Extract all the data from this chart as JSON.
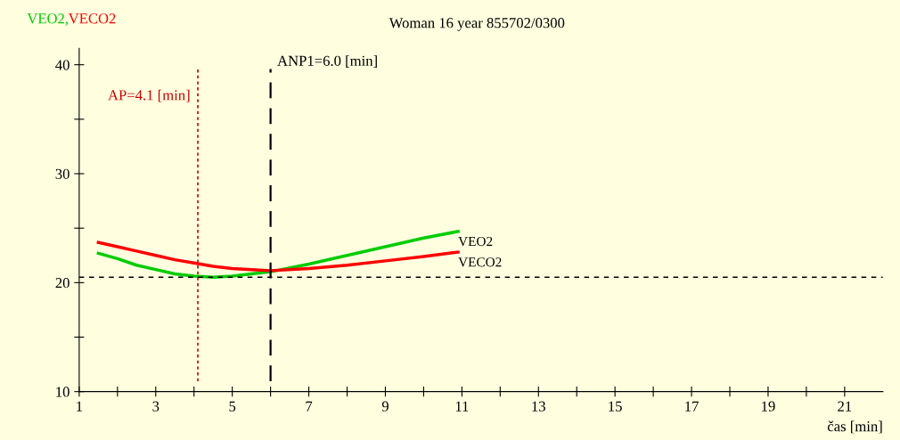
{
  "chart_data": {
    "type": "line",
    "title": "Woman 16 year 855702/0300",
    "ylabel": "VEO2,VECO2",
    "xlabel": "čas [min]",
    "series": [
      {
        "name": "VEO2",
        "color": "#00cc00",
        "x": [
          1.5,
          2,
          2.5,
          3,
          3.5,
          4,
          4.5,
          5,
          5.5,
          6,
          7,
          8,
          9,
          10,
          10.9
        ],
        "values": [
          22.7,
          22.2,
          21.6,
          21.2,
          20.8,
          20.6,
          20.5,
          20.6,
          20.8,
          21.0,
          21.7,
          22.5,
          23.3,
          24.1,
          24.7
        ]
      },
      {
        "name": "VECO2",
        "color": "#ff0000",
        "x": [
          1.5,
          2,
          2.5,
          3,
          3.5,
          4,
          4.5,
          5,
          5.5,
          6,
          7,
          8,
          9,
          10,
          10.9
        ],
        "values": [
          23.7,
          23.3,
          22.9,
          22.5,
          22.1,
          21.8,
          21.5,
          21.3,
          21.2,
          21.1,
          21.3,
          21.6,
          22.0,
          22.4,
          22.8
        ]
      }
    ],
    "ref_lines": [
      {
        "axis": "x",
        "value": 6.0,
        "label": "ANP1=6.0 [min]",
        "color": "#000000",
        "line_style": "dashed"
      },
      {
        "axis": "x",
        "value": 4.1,
        "label": "AP=4.1 [min]",
        "color": "#cc0000",
        "line_style": "dotted"
      },
      {
        "axis": "y",
        "value": 20.5,
        "color": "#000000",
        "line_style": "dashed"
      }
    ],
    "xlim": [
      1,
      22
    ],
    "ylim": [
      10,
      41.5
    ],
    "xticks": [
      1,
      {
        "value": 2,
        "label": null
      },
      3,
      {
        "value": 4,
        "label": null
      },
      5,
      {
        "value": 6,
        "label": null
      },
      7,
      {
        "value": 8,
        "label": null
      },
      9,
      {
        "value": 10,
        "label": null
      },
      11,
      {
        "value": 12,
        "label": null
      },
      13,
      {
        "value": 14,
        "label": null
      },
      15,
      {
        "value": 16,
        "label": null
      },
      17,
      {
        "value": 18,
        "label": null
      },
      19,
      {
        "value": 20,
        "label": null
      },
      21
    ],
    "yticks": [
      10,
      {
        "value": 15,
        "label": null
      },
      20,
      {
        "value": 25,
        "label": null
      },
      30,
      {
        "value": 35,
        "label": null
      },
      40
    ],
    "grid": false,
    "legend": false,
    "marker": "none",
    "line_style": "solid"
  }
}
